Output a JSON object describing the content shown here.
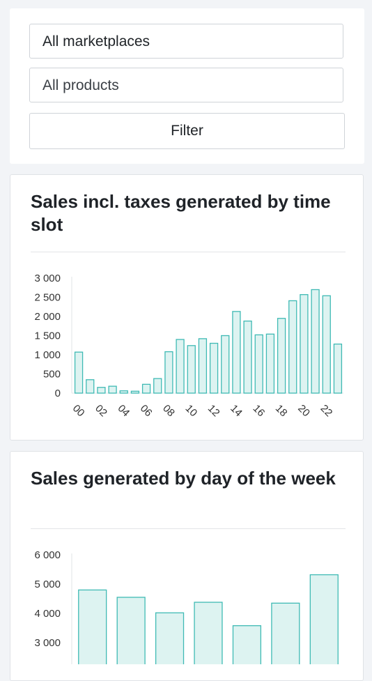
{
  "filters": {
    "marketplace": "All marketplaces",
    "product": "All products",
    "filter_label": "Filter"
  },
  "colors": {
    "bar_fill": "#ddf3f1",
    "bar_stroke": "#3fbab4"
  },
  "charts": [
    {
      "title": "Sales incl. taxes generated by time slot"
    },
    {
      "title": "Sales generated by day of the week"
    }
  ],
  "chart_data": [
    {
      "type": "bar",
      "title": "Sales incl. taxes generated by time slot",
      "categories": [
        "00",
        "01",
        "02",
        "03",
        "04",
        "05",
        "06",
        "07",
        "08",
        "09",
        "10",
        "11",
        "12",
        "13",
        "14",
        "15",
        "16",
        "17",
        "18",
        "19",
        "20",
        "21",
        "22",
        "23"
      ],
      "values": [
        1070,
        350,
        150,
        180,
        60,
        50,
        230,
        380,
        1080,
        1400,
        1240,
        1420,
        1300,
        1500,
        2130,
        1880,
        1520,
        1540,
        1950,
        2410,
        2570,
        2700,
        2540,
        1280
      ],
      "tick_labels": [
        "00",
        "02",
        "04",
        "06",
        "08",
        "10",
        "12",
        "14",
        "16",
        "18",
        "20",
        "22"
      ],
      "yticks": [
        "0",
        "500",
        "1 000",
        "1 500",
        "2 000",
        "2 500",
        "3 000"
      ],
      "ylim": [
        0,
        3000
      ],
      "grid": false
    },
    {
      "type": "bar",
      "title": "Sales generated by day of the week",
      "values": [
        4800,
        4550,
        4020,
        4380,
        3580,
        4350,
        5320
      ],
      "yticks": [
        "3 000",
        "4 000",
        "5 000",
        "6 000"
      ],
      "ylim": [
        0,
        6000
      ],
      "grid": false
    }
  ]
}
